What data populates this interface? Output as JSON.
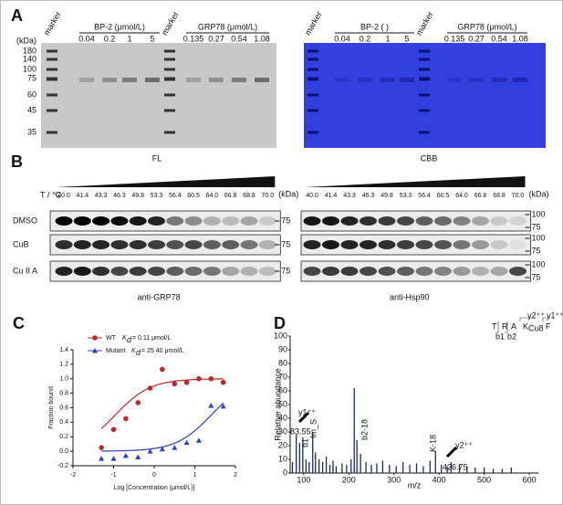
{
  "panel_a": {
    "label": "A",
    "fl": {
      "caption": "FL",
      "markers": [
        "marker",
        "marker"
      ],
      "groups": [
        {
          "title": "BP-2 (μmol/L)",
          "conc": [
            "0.04",
            "0.2",
            "1",
            "5"
          ]
        },
        {
          "title": "GRP78 (μmol/L)",
          "conc": [
            "0.135",
            "0.27",
            "0.54",
            "1.08"
          ]
        }
      ],
      "kda_unit": "(kDa)",
      "kda": [
        "180",
        "140",
        "100",
        "75",
        "60",
        "45",
        "35"
      ]
    },
    "cbb": {
      "caption": "CBB",
      "markers": [
        "marker",
        "marker"
      ],
      "groups": [
        {
          "title": "BP-2 (  )",
          "conc": [
            "0.04",
            "0.2",
            "1",
            "5"
          ]
        },
        {
          "title": "GRP78 (μmol/L)",
          "conc": [
            "0.135",
            "0.27",
            "0.54",
            "1.08"
          ]
        }
      ]
    }
  },
  "panel_b": {
    "label": "B",
    "temp_label": "T / ℃",
    "rows": [
      "DMSO",
      "CuB",
      "Cu II A"
    ],
    "blots": [
      {
        "caption": "anti-GRP78",
        "kda_unit": "(kDa)",
        "temps": [
          "40.0",
          "41.4",
          "43.3",
          "46.3",
          "49.8",
          "53.3",
          "56.4",
          "60.5",
          "64.0",
          "66.8",
          "68.8",
          "70.0"
        ],
        "row_markers": [
          [
            "75"
          ],
          [
            "75"
          ],
          [
            "75"
          ]
        ],
        "intensity": [
          [
            1,
            1,
            1,
            0.95,
            0.9,
            0.85,
            0.5,
            0.4,
            0.25,
            0.2,
            0.3,
            0.15
          ],
          [
            0.8,
            0.85,
            0.85,
            0.8,
            0.8,
            0.75,
            0.65,
            0.7,
            0.6,
            0.6,
            0.5,
            0.25
          ],
          [
            0.85,
            0.9,
            0.8,
            0.7,
            0.75,
            0.7,
            0.6,
            0.55,
            0.5,
            0.3,
            0.25,
            0.2
          ]
        ]
      },
      {
        "caption": "anti-Hsp90",
        "kda_unit": "(kDa)",
        "temps": [
          "40.0",
          "41.4",
          "43.3",
          "46.3",
          "49.8",
          "53.3",
          "56.4",
          "60.5",
          "64.0",
          "66.8",
          "68.8",
          "70.0"
        ],
        "row_markers": [
          [
            "100",
            "75"
          ],
          [
            "100",
            "75"
          ],
          [
            "100",
            "75"
          ]
        ],
        "intensity": [
          [
            0.9,
            0.9,
            0.85,
            0.8,
            0.75,
            0.7,
            0.6,
            0.55,
            0.45,
            0.3,
            0.15,
            0.1
          ],
          [
            0.85,
            0.9,
            0.85,
            0.85,
            0.8,
            0.75,
            0.7,
            0.65,
            0.5,
            0.35,
            0.15,
            0.05
          ],
          [
            0.7,
            0.75,
            0.75,
            0.7,
            0.65,
            0.6,
            0.5,
            0.45,
            0.35,
            0.25,
            0.3,
            0.7
          ]
        ]
      }
    ]
  },
  "panel_d_text": {
    "label": "D",
    "annotations": [
      "y1⁺⁺",
      "83.55",
      "y2⁺⁺",
      "426.75",
      "Im_S",
      "b1",
      "b2-18",
      "K-18"
    ],
    "inset": {
      "residues": [
        "T",
        "R",
        "A",
        "K",
        "F"
      ],
      "mod": "Cu8",
      "ions": [
        "y2⁺⁺",
        "y1⁺⁺",
        "b1",
        "b2"
      ]
    }
  },
  "chart_data": [
    {
      "type": "scatter",
      "panel": "C",
      "xlabel": "Log [Concentration (μmol/L)]",
      "ylabel": "Fraction bound",
      "xlim": [
        -2,
        2
      ],
      "xticks": [
        -2,
        -1,
        0,
        1,
        2
      ],
      "ylim": [
        -0.2,
        1.4
      ],
      "yticks": [
        -0.2,
        {
          "value": 0,
          "label": "0.0"
        },
        0.2,
        0.4,
        0.6,
        0.8,
        {
          "value": 1,
          "label": "1.0"
        },
        1.2,
        1.4
      ],
      "series": [
        {
          "name": "WT",
          "color": "#c0262d",
          "marker": "circle",
          "kd_symbol": "K",
          "kd_subscript": "d",
          "kd_label": "= 0.11 μmol/L",
          "kd": 0.11,
          "x": [
            -1.3,
            -1.0,
            -0.7,
            -0.4,
            -0.1,
            0.2,
            0.5,
            0.8,
            1.1,
            1.4,
            1.7
          ],
          "values": [
            0.05,
            0.3,
            0.45,
            0.67,
            0.87,
            1.13,
            0.93,
            0.95,
            1.0,
            1.0,
            0.95
          ]
        },
        {
          "name": "Mutant",
          "color": "#2b3fc4",
          "marker": "triangle",
          "kd_symbol": "K",
          "kd_subscript": "d",
          "kd_label": "= 25.40 μmol/L",
          "kd": 25.4,
          "x": [
            -1.3,
            -1.0,
            -0.7,
            -0.4,
            -0.1,
            0.2,
            0.5,
            0.8,
            1.1,
            1.4,
            1.7
          ],
          "values": [
            -0.1,
            -0.1,
            -0.06,
            -0.08,
            0.0,
            0.03,
            0.05,
            0.12,
            0.15,
            0.63,
            0.62
          ]
        }
      ]
    },
    {
      "type": "bar",
      "panel": "D",
      "xlabel": "m/z",
      "ylabel": "Relative abundance",
      "color": "#1f2a5a",
      "xlim": [
        70,
        620
      ],
      "xticks": [
        100,
        200,
        300,
        400,
        500,
        600
      ],
      "ylim": [
        0,
        100
      ],
      "yticks": [
        0,
        10,
        20,
        30,
        40,
        50,
        60,
        70,
        80,
        90,
        100
      ],
      "x": [
        75,
        83.55,
        91,
        98,
        105,
        112,
        120,
        126,
        134,
        142,
        150,
        158,
        165,
        172,
        185,
        195,
        205,
        212,
        218,
        226,
        238,
        250,
        262,
        275,
        290,
        305,
        320,
        335,
        350,
        365,
        380,
        392,
        405,
        418,
        426.75,
        445,
        462,
        480,
        500,
        520,
        540,
        560
      ],
      "values": [
        8,
        28,
        22,
        26,
        10,
        8,
        30,
        15,
        10,
        8,
        12,
        6,
        9,
        5,
        7,
        6,
        10,
        62,
        24,
        14,
        8,
        6,
        7,
        9,
        6,
        5,
        8,
        6,
        7,
        5,
        9,
        16,
        6,
        5,
        8,
        6,
        5,
        4,
        4,
        3,
        3,
        4
      ]
    }
  ]
}
